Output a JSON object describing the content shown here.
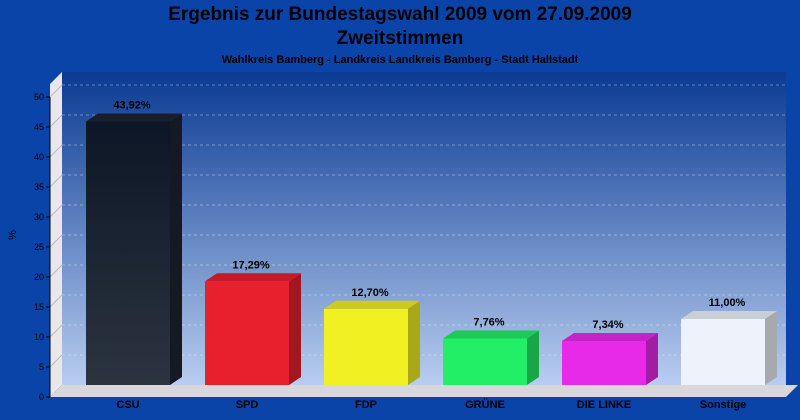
{
  "chart_data": {
    "type": "bar",
    "title": "Ergebnis zur Bundestagswahl 2009 vom 27.09.2009",
    "title_line2": "Zweitstimmen",
    "subtitle": "Wahlkreis Bamberg - Landkreis Landkreis Bamberg - Stadt Hallstadt",
    "xlabel": "",
    "ylabel": "%",
    "ylim": [
      0,
      50
    ],
    "yticks": [
      0,
      5,
      10,
      15,
      20,
      25,
      30,
      35,
      40,
      45,
      50
    ],
    "grid": true,
    "categories": [
      "CSU",
      "SPD",
      "FDP",
      "GRÜNE",
      "DIE LINKE",
      "Sonstige"
    ],
    "values": [
      43.92,
      17.29,
      12.7,
      7.76,
      7.34,
      11.0
    ],
    "value_labels": [
      "43,92%",
      "17,29%",
      "12,70%",
      "7,76%",
      "7,34%",
      "11,00%"
    ],
    "colors": [
      "#1c2533",
      "#e8202e",
      "#f0f022",
      "#22ee66",
      "#e62ae8",
      "#eef2fa"
    ]
  },
  "colors": {
    "background": "#0a44a8",
    "plot_top": "#0a3a92",
    "plot_bottom": "#b8cdf0"
  }
}
